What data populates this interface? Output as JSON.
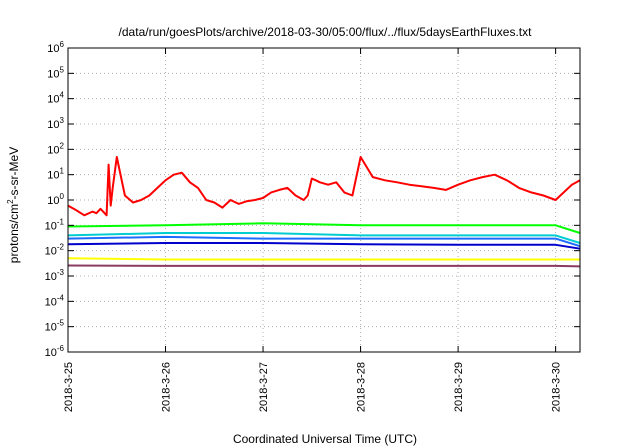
{
  "chart_data": {
    "type": "line",
    "title": "/data/run/goesPlots/archive/2018-03-30/05:00/flux/../flux/5daysEarthFluxes.txt",
    "xlabel": "Coordinated Universal Time (UTC)",
    "ylabel": "protons/cm²-s-sr-MeV",
    "ylabel_parts": {
      "base": "protons/cm",
      "sup": "2",
      "rest": "-s-sr-MeV"
    },
    "yscale": "log",
    "ylim": [
      1e-06,
      1000000.0
    ],
    "xlim": [
      "2018-03-25",
      "2018-03-30T06:00"
    ],
    "grid": true,
    "x_ticks": [
      "2018-3-25",
      "2018-3-26",
      "2018-3-27",
      "2018-3-28",
      "2018-3-29",
      "2018-3-30"
    ],
    "y_ticks": [
      {
        "exp": "6",
        "value": 1000000.0
      },
      {
        "exp": "5",
        "value": 100000.0
      },
      {
        "exp": "4",
        "value": 10000.0
      },
      {
        "exp": "3",
        "value": 1000.0
      },
      {
        "exp": "2",
        "value": 100.0
      },
      {
        "exp": "1",
        "value": 10.0
      },
      {
        "exp": "0",
        "value": 1.0
      },
      {
        "exp": "-1",
        "value": 0.1
      },
      {
        "exp": "-2",
        "value": 0.01
      },
      {
        "exp": "-3",
        "value": 0.001
      },
      {
        "exp": "-4",
        "value": 0.0001
      },
      {
        "exp": "-5",
        "value": 1e-05
      },
      {
        "exp": "-6",
        "value": 1e-06
      }
    ],
    "series": [
      {
        "color": "#ff0000",
        "x": [
          "2018-03-25T00:00",
          "2018-03-25T02:00",
          "2018-03-25T04:00",
          "2018-03-25T06:00",
          "2018-03-25T07:00",
          "2018-03-25T08:00",
          "2018-03-25T09:30",
          "2018-03-25T10:00",
          "2018-03-25T10:30",
          "2018-03-25T11:00",
          "2018-03-25T12:00",
          "2018-03-25T14:00",
          "2018-03-25T16:00",
          "2018-03-25T18:00",
          "2018-03-25T20:00",
          "2018-03-25T22:00",
          "2018-03-26T00:00",
          "2018-03-26T02:00",
          "2018-03-26T04:00",
          "2018-03-26T06:00",
          "2018-03-26T08:00",
          "2018-03-26T10:00",
          "2018-03-26T12:00",
          "2018-03-26T14:00",
          "2018-03-26T16:00",
          "2018-03-26T18:00",
          "2018-03-26T20:00",
          "2018-03-26T22:00",
          "2018-03-27T00:00",
          "2018-03-27T02:00",
          "2018-03-27T04:00",
          "2018-03-27T06:00",
          "2018-03-27T08:00",
          "2018-03-27T10:00",
          "2018-03-27T11:00",
          "2018-03-27T12:00",
          "2018-03-27T13:00",
          "2018-03-27T14:00",
          "2018-03-27T16:00",
          "2018-03-27T18:00",
          "2018-03-27T20:00",
          "2018-03-27T22:00",
          "2018-03-28T00:00",
          "2018-03-28T03:00",
          "2018-03-28T06:00",
          "2018-03-28T09:00",
          "2018-03-28T12:00",
          "2018-03-28T15:00",
          "2018-03-28T18:00",
          "2018-03-28T21:00",
          "2018-03-29T00:00",
          "2018-03-29T03:00",
          "2018-03-29T06:00",
          "2018-03-29T09:00",
          "2018-03-29T12:00",
          "2018-03-29T15:00",
          "2018-03-29T18:00",
          "2018-03-29T21:00",
          "2018-03-30T00:00",
          "2018-03-30T02:00",
          "2018-03-30T04:00",
          "2018-03-30T06:00"
        ],
        "y": [
          0.6,
          0.4,
          0.25,
          0.35,
          0.3,
          0.45,
          0.25,
          25,
          0.6,
          3,
          50,
          1.5,
          0.8,
          1.0,
          1.5,
          3,
          6,
          10,
          12,
          5,
          3,
          1.0,
          0.8,
          0.5,
          1.0,
          0.7,
          0.9,
          1.0,
          1.2,
          2,
          2.5,
          3,
          1.5,
          1.0,
          1.5,
          7,
          6,
          5,
          4,
          5,
          2,
          1.5,
          50,
          8,
          6,
          5,
          4,
          3.5,
          3,
          2.5,
          4,
          6,
          8,
          10,
          6,
          3,
          2.0,
          1.5,
          1.0,
          2.0,
          4,
          6
        ]
      },
      {
        "color": "#00ff00",
        "x": [
          "2018-03-25T00:00",
          "2018-03-26T00:00",
          "2018-03-27T00:00",
          "2018-03-28T00:00",
          "2018-03-29T00:00",
          "2018-03-30T00:00",
          "2018-03-30T06:00"
        ],
        "y": [
          0.09,
          0.1,
          0.12,
          0.1,
          0.1,
          0.1,
          0.05
        ]
      },
      {
        "color": "#00ced1",
        "x": [
          "2018-03-25T00:00",
          "2018-03-26T00:00",
          "2018-03-27T00:00",
          "2018-03-28T00:00",
          "2018-03-29T00:00",
          "2018-03-30T00:00",
          "2018-03-30T06:00"
        ],
        "y": [
          0.04,
          0.05,
          0.05,
          0.04,
          0.04,
          0.04,
          0.02
        ]
      },
      {
        "color": "#1e6bff",
        "x": [
          "2018-03-25T00:00",
          "2018-03-26T00:00",
          "2018-03-27T00:00",
          "2018-03-28T00:00",
          "2018-03-29T00:00",
          "2018-03-30T00:00",
          "2018-03-30T06:00"
        ],
        "y": [
          0.03,
          0.035,
          0.03,
          0.03,
          0.03,
          0.03,
          0.015
        ]
      },
      {
        "color": "#0000cd",
        "x": [
          "2018-03-25T00:00",
          "2018-03-26T00:00",
          "2018-03-27T00:00",
          "2018-03-28T00:00",
          "2018-03-29T00:00",
          "2018-03-30T00:00",
          "2018-03-30T06:00"
        ],
        "y": [
          0.018,
          0.02,
          0.02,
          0.018,
          0.017,
          0.017,
          0.012
        ]
      },
      {
        "color": "#ffff00",
        "x": [
          "2018-03-25T00:00",
          "2018-03-26T00:00",
          "2018-03-27T00:00",
          "2018-03-28T00:00",
          "2018-03-29T00:00",
          "2018-03-30T00:00",
          "2018-03-30T06:00"
        ],
        "y": [
          0.005,
          0.0045,
          0.0045,
          0.0045,
          0.0045,
          0.0045,
          0.0045
        ]
      },
      {
        "color": "#8b3a62",
        "x": [
          "2018-03-25T00:00",
          "2018-03-26T00:00",
          "2018-03-27T00:00",
          "2018-03-28T00:00",
          "2018-03-29T00:00",
          "2018-03-30T00:00",
          "2018-03-30T06:00"
        ],
        "y": [
          0.0026,
          0.0025,
          0.0025,
          0.0025,
          0.0025,
          0.0025,
          0.0024
        ]
      }
    ]
  }
}
